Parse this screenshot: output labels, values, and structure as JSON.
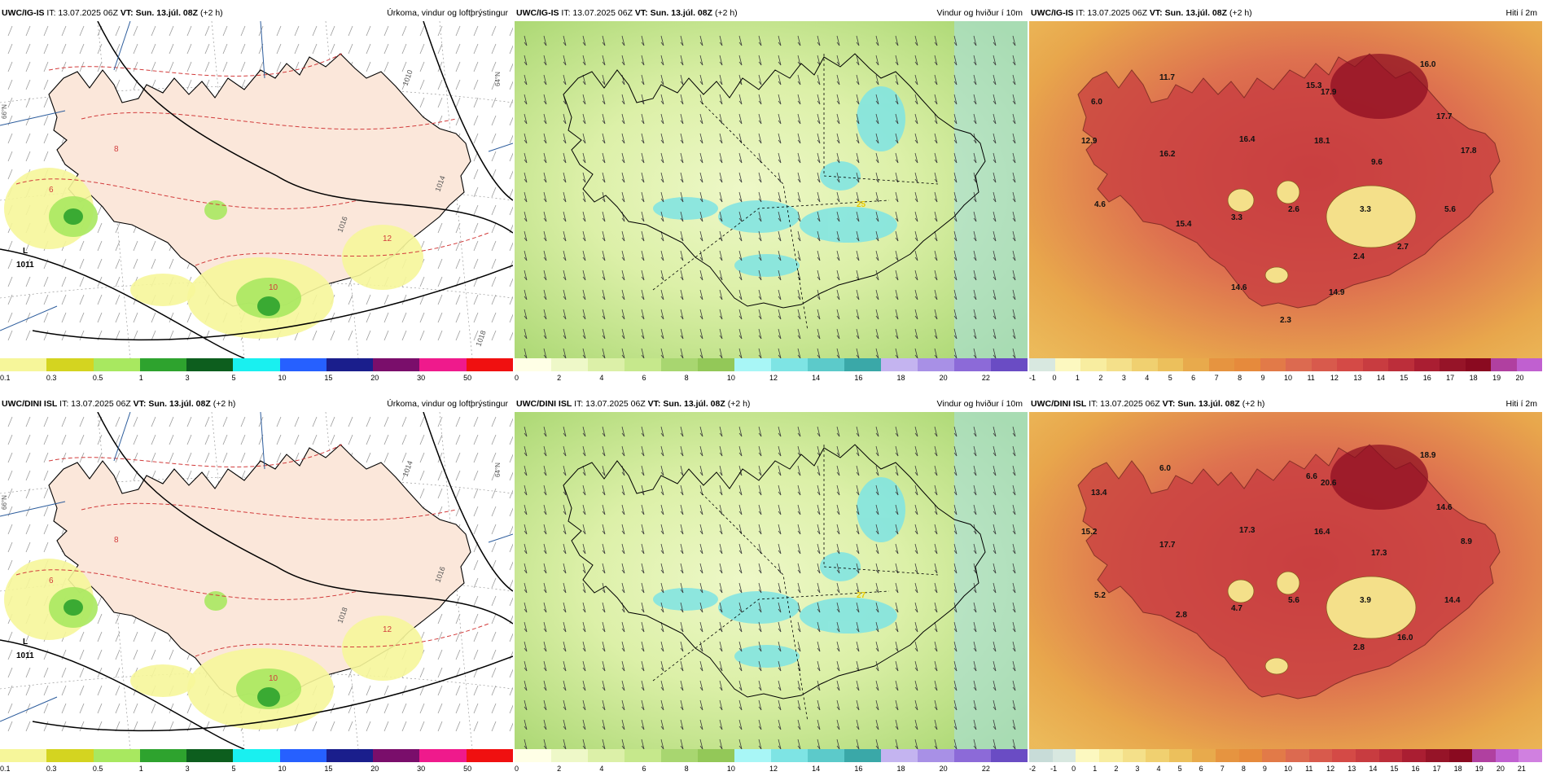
{
  "panels": [
    {
      "src": "UWC/IG-IS",
      "it": "IT: 13.07.2025 06Z",
      "vt": "VT: Sun. 13.júl. 08Z",
      "lead": "(+2 h)",
      "title": "Úrkoma, vindur og loftþrýstingur",
      "kind": "precip",
      "colors": [
        "#f6f69a",
        "#d4d420",
        "#a8e860",
        "#2ea32e",
        "#0d5e1e",
        "#19f0f0",
        "#2660ff",
        "#1a1e8c",
        "#7a0e6b",
        "#ef1a8c",
        "#f01010"
      ],
      "ticks": [
        "0.1",
        "0.3",
        "0.5",
        "1",
        "3",
        "5",
        "10",
        "15",
        "20",
        "30",
        "50"
      ],
      "pressure": {
        "symbol": "L",
        "value": "1011"
      },
      "isobar_labels": [
        "1010",
        "1014",
        "1016",
        "1018"
      ],
      "temp_contours": [
        "6",
        "8",
        "10",
        "12"
      ],
      "lat_labels": [
        "66°N",
        "64°N"
      ]
    },
    {
      "src": "UWC/IG-IS",
      "it": "IT: 13.07.2025 06Z",
      "vt": "VT: Sun. 13.júl. 08Z",
      "lead": "(+2 h)",
      "title": "Vindur og hviður í 10m",
      "kind": "wind",
      "colors": [
        "#ffffe6",
        "#eef8c8",
        "#dcf0a8",
        "#c6e88c",
        "#a8d670",
        "#93c858",
        "#a8f6f6",
        "#7ee4e4",
        "#5ccaca",
        "#3aa8a8",
        "#c4b4f0",
        "#a890e6",
        "#8c6ad8",
        "#6a4cc4"
      ],
      "ticks": [
        "0",
        "2",
        "4",
        "6",
        "8",
        "10",
        "12",
        "14",
        "16",
        "18",
        "20",
        "22"
      ],
      "gust_values": [
        "25"
      ]
    },
    {
      "src": "UWC/IG-IS",
      "it": "IT: 13.07.2025 06Z",
      "vt": "VT: Sun. 13.júl. 08Z",
      "lead": "(+2 h)",
      "title": "Hiti í 2m",
      "kind": "temp",
      "colors": [
        "#d8e8e0",
        "#fcf8c0",
        "#f8eda0",
        "#f4e08a",
        "#f0d070",
        "#ecc05c",
        "#e8aa4c",
        "#e69440",
        "#e68a3c",
        "#e27a48",
        "#dc6a50",
        "#d85a4c",
        "#d44a46",
        "#c83c40",
        "#bc2e3a",
        "#aa1e32",
        "#961428",
        "#8a0a20",
        "#b040a0",
        "#c060d0"
      ],
      "ticks": [
        "-1",
        "0",
        "1",
        "2",
        "3",
        "4",
        "5",
        "6",
        "7",
        "8",
        "9",
        "10",
        "11",
        "12",
        "13",
        "14",
        "15",
        "16",
        "17",
        "18",
        "19",
        "20"
      ],
      "values": [
        "11.7",
        "6.0",
        "15.3",
        "17.9",
        "16.0",
        "12.9",
        "16.2",
        "16.4",
        "18.1",
        "9.6",
        "17.7",
        "17.8",
        "4.6",
        "15.4",
        "3.3",
        "2.6",
        "3.3",
        "5.6",
        "2.7",
        "2.4",
        "14.6",
        "14.9",
        "2.3"
      ]
    },
    {
      "src": "UWC/DINI ISL",
      "it": "IT: 13.07.2025 06Z",
      "vt": "VT: Sun. 13.júl. 08Z",
      "lead": "(+2 h)",
      "title": "Úrkoma, vindur og loftþrýstingur",
      "kind": "precip",
      "colors": [
        "#f6f69a",
        "#d4d420",
        "#a8e860",
        "#2ea32e",
        "#0d5e1e",
        "#19f0f0",
        "#2660ff",
        "#1a1e8c",
        "#7a0e6b",
        "#ef1a8c",
        "#f01010"
      ],
      "ticks": [
        "0.1",
        "0.3",
        "0.5",
        "1",
        "3",
        "5",
        "10",
        "15",
        "20",
        "30",
        "50"
      ],
      "pressure": {
        "symbol": "L",
        "value": "1011"
      },
      "isobar_labels": [
        "1014",
        "1016",
        "1018"
      ],
      "temp_contours": [
        "6",
        "8",
        "10",
        "12"
      ],
      "lat_labels": [
        "66°N",
        "64°N"
      ]
    },
    {
      "src": "UWC/DINI ISL",
      "it": "IT: 13.07.2025 06Z",
      "vt": "VT: Sun. 13.júl. 08Z",
      "lead": "(+2 h)",
      "title": "Vindur og hviður í 10m",
      "kind": "wind",
      "colors": [
        "#ffffe6",
        "#eef8c8",
        "#dcf0a8",
        "#c6e88c",
        "#a8d670",
        "#93c858",
        "#a8f6f6",
        "#7ee4e4",
        "#5ccaca",
        "#3aa8a8",
        "#c4b4f0",
        "#a890e6",
        "#8c6ad8",
        "#6a4cc4"
      ],
      "ticks": [
        "0",
        "2",
        "4",
        "6",
        "8",
        "10",
        "12",
        "14",
        "16",
        "18",
        "20",
        "22"
      ],
      "gust_values": [
        "27"
      ]
    },
    {
      "src": "UWC/DINI ISL",
      "it": "IT: 13.07.2025 06Z",
      "vt": "VT: Sun. 13.júl. 08Z",
      "lead": "(+2 h)",
      "title": "Hiti í 2m",
      "kind": "temp",
      "colors": [
        "#c8dcd8",
        "#d8e8e0",
        "#fcf8c0",
        "#f8eda0",
        "#f4e08a",
        "#f0d070",
        "#ecc05c",
        "#e8aa4c",
        "#e69440",
        "#e68a3c",
        "#e27a48",
        "#dc6a50",
        "#d85a4c",
        "#d44a46",
        "#c83c40",
        "#bc2e3a",
        "#aa1e32",
        "#961428",
        "#8a0a20",
        "#b040a0",
        "#c060d0",
        "#d080e0"
      ],
      "ticks": [
        "-2",
        "-1",
        "0",
        "1",
        "2",
        "3",
        "4",
        "5",
        "6",
        "7",
        "8",
        "9",
        "10",
        "11",
        "12",
        "13",
        "14",
        "15",
        "16",
        "17",
        "18",
        "19",
        "20",
        "21"
      ],
      "values": [
        "6.0",
        "13.4",
        "6.6",
        "20.6",
        "18.9",
        "15.2",
        "17.7",
        "17.3",
        "16.4",
        "17.3",
        "14.6",
        "8.9",
        "5.2",
        "2.8",
        "4.7",
        "5.6",
        "3.9",
        "14.4",
        "16.0",
        "2.8"
      ]
    }
  ]
}
